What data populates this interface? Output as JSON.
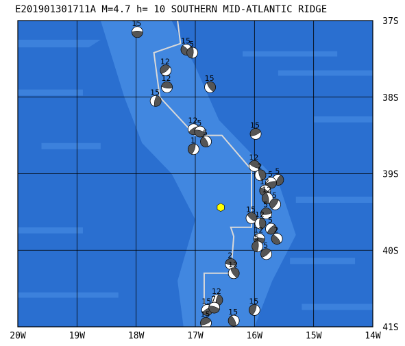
{
  "title": "E201901301711A  M=4.7  h= 10 SOUTHERN MID-ATLANTIC RIDGE",
  "map": {
    "lon_range": [
      -20,
      -14
    ],
    "lat_range": [
      -41,
      -37
    ],
    "lon_ticks": [
      {
        "value": -20,
        "label": "20W"
      },
      {
        "value": -19,
        "label": "19W"
      },
      {
        "value": -18,
        "label": "18W"
      },
      {
        "value": -17,
        "label": "17W"
      },
      {
        "value": -16,
        "label": "16W"
      },
      {
        "value": -15,
        "label": "15W"
      },
      {
        "value": -14,
        "label": "14W"
      }
    ],
    "lat_ticks": [
      {
        "value": -37,
        "label": "37S"
      },
      {
        "value": -38,
        "label": "38S"
      },
      {
        "value": -39,
        "label": "39S"
      },
      {
        "value": -40,
        "label": "40S"
      },
      {
        "value": -41,
        "label": "41S"
      }
    ],
    "colors": {
      "ocean": "#2a6fd0",
      "ridge_shading": "#4a8fe6",
      "grid": "#000000",
      "plate_boundary": "#d9d9d9",
      "epicenter": "#ffff00",
      "mech_dark": "#555555",
      "mech_light": "#ffffff"
    },
    "epicenter": {
      "lon": -16.57,
      "lat": -39.44,
      "marker": "hexagon-icon"
    },
    "plate_boundary": [
      [
        -17.3,
        -37.0
      ],
      [
        -17.25,
        -37.3
      ],
      [
        -17.7,
        -37.42
      ],
      [
        -17.6,
        -38.0
      ],
      [
        -17.0,
        -38.5
      ],
      [
        -16.55,
        -38.5
      ],
      [
        -16.05,
        -38.95
      ],
      [
        -16.05,
        -39.7
      ],
      [
        -16.4,
        -39.7
      ],
      [
        -16.35,
        -39.82
      ],
      [
        -16.4,
        -40.3
      ],
      [
        -16.85,
        -40.3
      ],
      [
        -16.85,
        -40.8
      ]
    ],
    "events": [
      {
        "lon": -17.98,
        "lat": -37.15,
        "label": "15"
      },
      {
        "lon": -17.15,
        "lat": -37.38,
        "label": "15"
      },
      {
        "lon": -17.05,
        "lat": -37.42,
        "label": "5"
      },
      {
        "lon": -17.5,
        "lat": -37.65,
        "label": "12"
      },
      {
        "lon": -17.48,
        "lat": -37.87,
        "label": "12"
      },
      {
        "lon": -16.75,
        "lat": -37.87,
        "label": "15"
      },
      {
        "lon": -17.67,
        "lat": -38.05,
        "label": "15"
      },
      {
        "lon": -17.03,
        "lat": -38.42,
        "label": "12"
      },
      {
        "lon": -16.92,
        "lat": -38.45,
        "label": "5"
      },
      {
        "lon": -16.82,
        "lat": -38.58,
        "label": "5"
      },
      {
        "lon": -17.03,
        "lat": -38.68,
        "label": "1"
      },
      {
        "lon": -15.98,
        "lat": -38.48,
        "label": "15"
      },
      {
        "lon": -16.0,
        "lat": -38.9,
        "label": "12"
      },
      {
        "lon": -15.9,
        "lat": -39.02,
        "label": "2"
      },
      {
        "lon": -15.6,
        "lat": -39.08,
        "label": "5"
      },
      {
        "lon": -15.72,
        "lat": -39.12,
        "label": "5"
      },
      {
        "lon": -15.82,
        "lat": -39.22,
        "label": "12"
      },
      {
        "lon": -15.78,
        "lat": -39.32,
        "label": "12"
      },
      {
        "lon": -15.65,
        "lat": -39.4,
        "label": "5"
      },
      {
        "lon": -15.8,
        "lat": -39.52,
        "label": "5"
      },
      {
        "lon": -16.05,
        "lat": -39.58,
        "label": "15"
      },
      {
        "lon": -15.9,
        "lat": -39.65,
        "label": "12"
      },
      {
        "lon": -15.72,
        "lat": -39.72,
        "label": "5"
      },
      {
        "lon": -15.92,
        "lat": -39.85,
        "label": "12"
      },
      {
        "lon": -15.62,
        "lat": -39.85,
        "label": "2"
      },
      {
        "lon": -15.95,
        "lat": -39.95,
        "label": "5"
      },
      {
        "lon": -15.8,
        "lat": -40.05,
        "label": "5"
      },
      {
        "lon": -16.4,
        "lat": -40.18,
        "label": "2"
      },
      {
        "lon": -16.35,
        "lat": -40.3,
        "label": "12"
      },
      {
        "lon": -16.63,
        "lat": -40.65,
        "label": "12"
      },
      {
        "lon": -16.8,
        "lat": -40.78,
        "label": "15"
      },
      {
        "lon": -16.68,
        "lat": -40.75,
        "label": "7"
      },
      {
        "lon": -16.35,
        "lat": -40.92,
        "label": "15"
      },
      {
        "lon": -16.0,
        "lat": -40.78,
        "label": "15"
      },
      {
        "lon": -16.82,
        "lat": -40.95,
        "label": "15"
      }
    ]
  }
}
